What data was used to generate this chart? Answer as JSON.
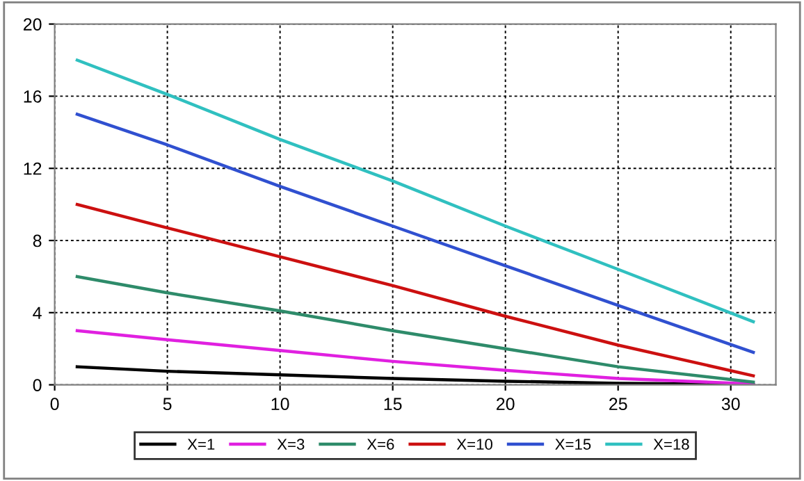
{
  "chart_data": {
    "type": "line",
    "x": [
      1,
      5,
      10,
      15,
      20,
      25,
      31
    ],
    "series": [
      {
        "name": "X=1",
        "color": "#000000",
        "values": [
          1,
          0.75,
          0.55,
          0.35,
          0.2,
          0.08,
          0.02
        ]
      },
      {
        "name": "X=3",
        "color": "#e020e0",
        "values": [
          3,
          2.5,
          1.9,
          1.3,
          0.8,
          0.35,
          0.05
        ]
      },
      {
        "name": "X=6",
        "color": "#2e8b6a",
        "values": [
          6,
          5.1,
          4.1,
          3.0,
          2.0,
          1.0,
          0.15
        ]
      },
      {
        "name": "X=10",
        "color": "#cc1010",
        "values": [
          10,
          8.7,
          7.1,
          5.5,
          3.8,
          2.2,
          0.5
        ]
      },
      {
        "name": "X=15",
        "color": "#3050d0",
        "values": [
          15,
          13.3,
          11,
          8.8,
          6.6,
          4.4,
          1.8
        ]
      },
      {
        "name": "X=18",
        "color": "#30c0c0",
        "values": [
          18,
          16.1,
          13.6,
          11.3,
          8.8,
          6.4,
          3.5
        ]
      }
    ],
    "xlim": [
      0,
      32
    ],
    "xticks": [
      0,
      5,
      10,
      15,
      20,
      25,
      30
    ],
    "ylim": [
      0,
      20
    ],
    "yticks": [
      0,
      4,
      8,
      12,
      16,
      20
    ],
    "grid": true,
    "legend": "bottom",
    "marker": "none",
    "line_style": "solid"
  }
}
